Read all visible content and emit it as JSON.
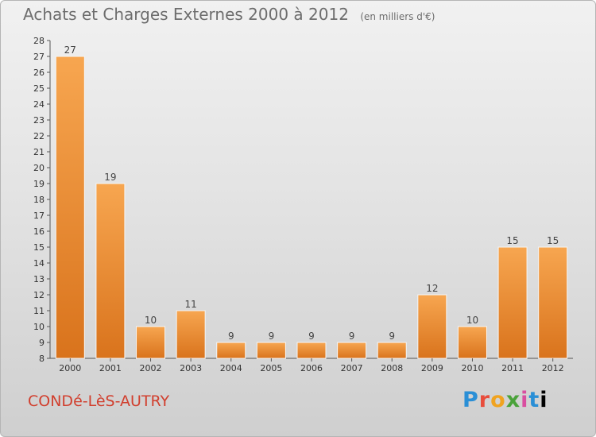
{
  "header": {
    "title": "Achats et Charges Externes 2000 à 2012",
    "unit": "(en milliers d'€)"
  },
  "footer": {
    "town": "CONDé-LèS-AUTRY",
    "brand_letters": [
      "P",
      "r",
      "o",
      "x",
      "i",
      "t",
      "i"
    ]
  },
  "colors": {
    "bar_light": "#f7a650",
    "bar_dark": "#d9731c",
    "title": "#6d6d6d",
    "town": "#d13f2e"
  },
  "chart_data": {
    "type": "bar",
    "title": "Achats et Charges Externes 2000 à 2012",
    "subtitle": "(en milliers d'€)",
    "xlabel": "",
    "ylabel": "",
    "categories": [
      "2000",
      "2001",
      "2002",
      "2003",
      "2004",
      "2005",
      "2006",
      "2007",
      "2008",
      "2009",
      "2010",
      "2011",
      "2012"
    ],
    "values": [
      27,
      19,
      10,
      11,
      9,
      9,
      9,
      9,
      9,
      12,
      10,
      15,
      15
    ],
    "ylim": [
      8,
      28
    ],
    "yticks": [
      8,
      9,
      10,
      11,
      12,
      13,
      14,
      15,
      16,
      17,
      18,
      19,
      20,
      21,
      22,
      23,
      24,
      25,
      26,
      27,
      28
    ],
    "grid": false,
    "legend": "none"
  }
}
